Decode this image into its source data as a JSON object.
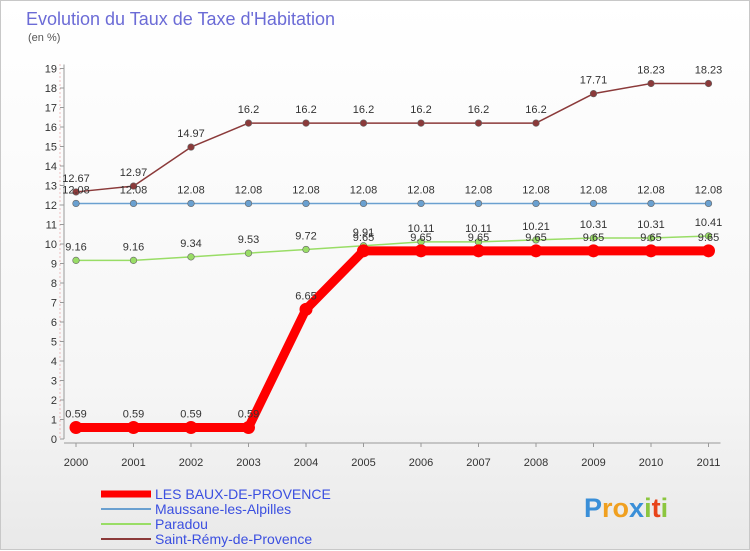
{
  "chart_data": {
    "type": "line",
    "title": "Evolution du Taux de Taxe d'Habitation",
    "subtitle": "(en %)",
    "xlabel": "",
    "ylabel": "",
    "ylim": [
      0,
      19
    ],
    "x": [
      "2000",
      "2001",
      "2002",
      "2003",
      "2004",
      "2005",
      "2006",
      "2007",
      "2008",
      "2009",
      "2010",
      "2011"
    ],
    "y_ticks": [
      "0",
      "1",
      "2",
      "3",
      "4",
      "5",
      "6",
      "7",
      "8",
      "9",
      "10",
      "11",
      "12",
      "13",
      "14",
      "15",
      "16",
      "17",
      "18",
      "19"
    ],
    "series": [
      {
        "name": "LES BAUX-DE-PROVENCE",
        "color": "#ff0000",
        "values": [
          0.59,
          0.59,
          0.59,
          0.59,
          6.65,
          9.65,
          9.65,
          9.65,
          9.65,
          9.65,
          9.65,
          9.65
        ],
        "labels": [
          "0.59",
          "0.59",
          "0.59",
          "0.59",
          "6.65",
          "9.65",
          "9.65",
          "9.65",
          "9.65",
          "9.65",
          "9.65",
          "9.65"
        ]
      },
      {
        "name": "Maussane-les-Alpilles",
        "color": "#6aa0d0",
        "values": [
          12.08,
          12.08,
          12.08,
          12.08,
          12.08,
          12.08,
          12.08,
          12.08,
          12.08,
          12.08,
          12.08,
          12.08
        ],
        "labels": [
          "12.08",
          "12.08",
          "12.08",
          "12.08",
          "12.08",
          "12.08",
          "12.08",
          "12.08",
          "12.08",
          "12.08",
          "12.08",
          "12.08"
        ]
      },
      {
        "name": "Paradou",
        "color": "#99dd66",
        "values": [
          9.16,
          9.16,
          9.34,
          9.53,
          9.72,
          9.91,
          10.11,
          10.11,
          10.21,
          10.31,
          10.31,
          10.41
        ],
        "labels": [
          "9.16",
          "9.16",
          "9.34",
          "9.53",
          "9.72",
          "9.91",
          "10.11",
          "10.11",
          "10.21",
          "10.31",
          "10.31",
          "10.41"
        ]
      },
      {
        "name": "Saint-Rémy-de-Provence",
        "color": "#8b3a3a",
        "values": [
          12.67,
          12.97,
          14.97,
          16.2,
          16.2,
          16.2,
          16.2,
          16.2,
          16.2,
          17.71,
          18.23,
          18.23
        ],
        "labels": [
          "12.67",
          "12.97",
          "14.97",
          "16.2",
          "16.2",
          "16.2",
          "16.2",
          "16.2",
          "16.2",
          "17.71",
          "18.23",
          "18.23"
        ]
      }
    ],
    "legend_position": "bottom-left"
  },
  "brand": {
    "text": "Proxiti",
    "letters": [
      {
        "ch": "P",
        "color": "#3a8fd8"
      },
      {
        "ch": "r",
        "color": "#f0a020"
      },
      {
        "ch": "o",
        "color": "#f0a020"
      },
      {
        "ch": "x",
        "color": "#3a8fd8"
      },
      {
        "ch": "i",
        "color": "#8cc63f"
      },
      {
        "ch": "t",
        "color": "#e8441a"
      },
      {
        "ch": "i",
        "color": "#8cc63f"
      }
    ]
  }
}
